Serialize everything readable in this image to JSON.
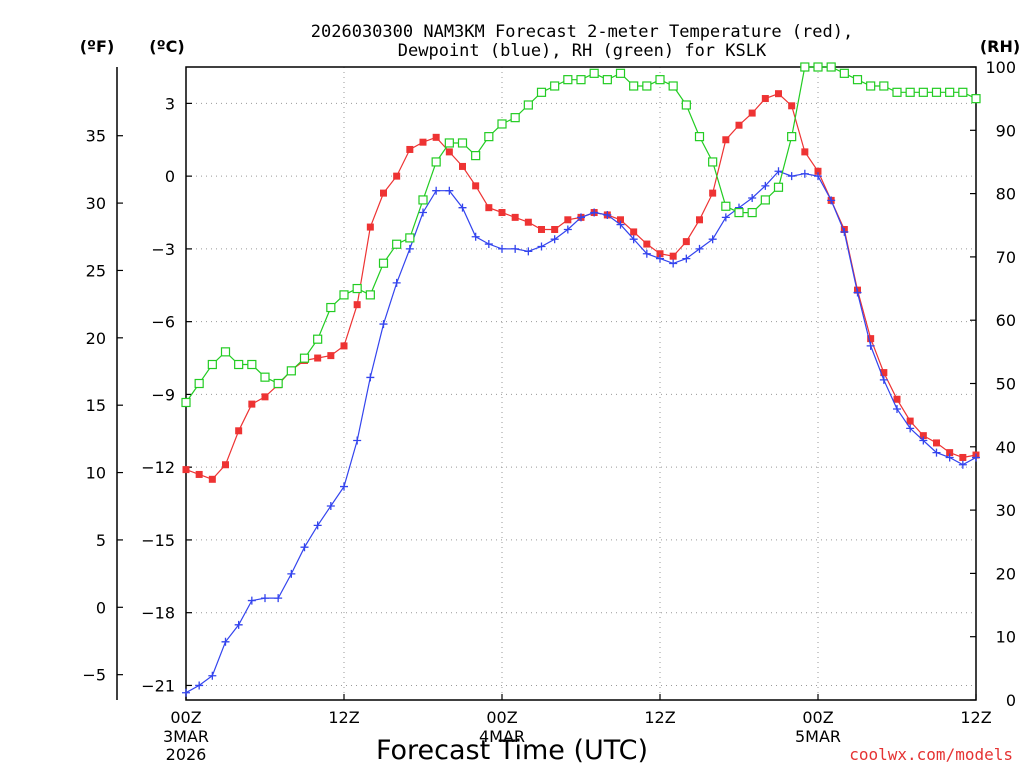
{
  "chart_data": {
    "type": "line",
    "title_line1": "2026030300 NAM3KM Forecast 2-meter Temperature (red),",
    "title_line2": "Dewpoint (blue), RH (green) for KSLK",
    "xlabel": "Forecast Time (UTC)",
    "credit": "coolwx.com/models",
    "axis_units": {
      "fahrenheit": "(ºF)",
      "celsius": "(ºC)",
      "rh": "(RH)"
    },
    "x_hours_range": [
      0,
      60
    ],
    "celsius_range": [
      -21.6,
      4.5
    ],
    "rh_range": [
      0,
      100
    ],
    "x_ticks": [
      {
        "hour": 0,
        "label": "00Z",
        "sub1": "3MAR",
        "sub2": "2026"
      },
      {
        "hour": 12,
        "label": "12Z",
        "sub1": "",
        "sub2": ""
      },
      {
        "hour": 24,
        "label": "00Z",
        "sub1": "4MAR",
        "sub2": ""
      },
      {
        "hour": 36,
        "label": "12Z",
        "sub1": "",
        "sub2": ""
      },
      {
        "hour": 48,
        "label": "00Z",
        "sub1": "5MAR",
        "sub2": ""
      },
      {
        "hour": 60,
        "label": "12Z",
        "sub1": "",
        "sub2": ""
      }
    ],
    "celsius_ticks": [
      3,
      0,
      -3,
      -6,
      -9,
      -12,
      -15,
      -18,
      -21
    ],
    "celsius_tick_labels": [
      "3",
      "0",
      "−3",
      "−6",
      "−9",
      "−12",
      "−15",
      "−18",
      "−21"
    ],
    "fahrenheit_ticks": [
      35,
      30,
      25,
      20,
      15,
      10,
      5,
      0,
      -5
    ],
    "fahrenheit_tick_labels": [
      "35",
      "30",
      "25",
      "20",
      "15",
      "10",
      "5",
      "0",
      "−5"
    ],
    "rh_ticks": [
      100,
      90,
      80,
      70,
      60,
      50,
      40,
      30,
      20,
      10,
      0
    ],
    "rh_tick_labels": [
      "100",
      "90",
      "80",
      "70",
      "60",
      "50",
      "40",
      "30",
      "20",
      "10",
      "0"
    ],
    "series": [
      {
        "name": "2-meter Temperature",
        "units": "°C",
        "axis": "celsius",
        "color": "#ee3333",
        "marker": "filled-square",
        "values": [
          -12.1,
          -12.3,
          -12.5,
          -11.9,
          -10.5,
          -9.4,
          -9.1,
          -8.6,
          -8.0,
          -7.6,
          -7.5,
          -7.4,
          -7.0,
          -5.3,
          -2.1,
          -0.7,
          0.0,
          1.1,
          1.4,
          1.6,
          1.0,
          0.4,
          -0.4,
          -1.3,
          -1.5,
          -1.7,
          -1.9,
          -2.2,
          -2.2,
          -1.8,
          -1.7,
          -1.5,
          -1.6,
          -1.8,
          -2.3,
          -2.8,
          -3.2,
          -3.3,
          -2.7,
          -1.8,
          -0.7,
          1.5,
          2.1,
          2.6,
          3.2,
          3.4,
          2.9,
          1.0,
          0.2,
          -1.0,
          -2.2,
          -4.7,
          -6.7,
          -8.1,
          -9.2,
          -10.1,
          -10.7,
          -11.0,
          -11.4,
          -11.6,
          -11.5
        ]
      },
      {
        "name": "Dewpoint",
        "units": "°C",
        "axis": "celsius",
        "color": "#3344ee",
        "marker": "plus",
        "values": [
          -21.3,
          -21.0,
          -20.6,
          -19.2,
          -18.5,
          -17.5,
          -17.4,
          -17.4,
          -16.4,
          -15.3,
          -14.4,
          -13.6,
          -12.8,
          -10.9,
          -8.3,
          -6.1,
          -4.4,
          -3.0,
          -1.5,
          -0.6,
          -0.6,
          -1.3,
          -2.5,
          -2.8,
          -3.0,
          -3.0,
          -3.1,
          -2.9,
          -2.6,
          -2.2,
          -1.7,
          -1.5,
          -1.6,
          -2.0,
          -2.6,
          -3.2,
          -3.4,
          -3.6,
          -3.4,
          -3.0,
          -2.6,
          -1.7,
          -1.3,
          -0.9,
          -0.4,
          0.2,
          0.0,
          0.1,
          0.0,
          -1.0,
          -2.3,
          -4.8,
          -7.0,
          -8.4,
          -9.6,
          -10.4,
          -10.9,
          -11.4,
          -11.6,
          -11.9,
          -11.6
        ]
      },
      {
        "name": "RH",
        "units": "%",
        "axis": "rh",
        "color": "#22cc22",
        "marker": "hollow-square",
        "values": [
          47,
          50,
          53,
          55,
          53,
          53,
          51,
          50,
          52,
          54,
          57,
          62,
          64,
          65,
          64,
          69,
          72,
          73,
          79,
          85,
          88,
          88,
          86,
          89,
          91,
          92,
          94,
          96,
          97,
          98,
          98,
          99,
          98,
          99,
          97,
          97,
          98,
          97,
          94,
          89,
          85,
          78,
          77,
          77,
          79,
          81,
          89,
          100,
          100,
          100,
          99,
          98,
          97,
          97,
          96,
          96,
          96,
          96,
          96,
          96,
          95
        ]
      }
    ]
  }
}
